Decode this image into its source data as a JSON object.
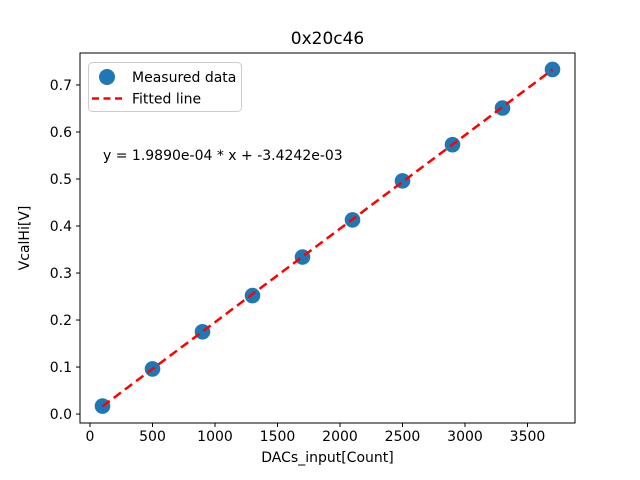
{
  "chart_data": {
    "type": "scatter",
    "title": "0x20c46",
    "xlabel": "DACs_input[Count]",
    "ylabel": "VcalHi[V]",
    "annotation": "y = 1.9890e-04 * x + -3.4242e-03",
    "grid": false,
    "legend_position": "upper left",
    "legend": [
      {
        "label": "Measured data",
        "symbol": "circle-marker",
        "color": "#1f77b4"
      },
      {
        "label": "Fitted line",
        "symbol": "dashed-line",
        "color": "#ff0000"
      }
    ],
    "x_ticks": [
      0,
      500,
      1000,
      1500,
      2000,
      2500,
      3000,
      3500
    ],
    "y_ticks": [
      0.0,
      0.1,
      0.2,
      0.3,
      0.4,
      0.5,
      0.6,
      0.7
    ],
    "xlim": [
      -80,
      3880
    ],
    "ylim": [
      -0.019,
      0.768
    ],
    "series": [
      {
        "name": "Measured data",
        "type": "scatter",
        "color": "#1f77b4",
        "x": [
          100,
          500,
          900,
          1300,
          1700,
          2100,
          2500,
          2900,
          3300,
          3700
        ],
        "y": [
          0.017,
          0.096,
          0.175,
          0.252,
          0.334,
          0.413,
          0.496,
          0.573,
          0.651,
          0.733
        ]
      },
      {
        "name": "Fitted line",
        "type": "line",
        "style": "dashed",
        "color": "#ff0000",
        "slope": 0.0001989,
        "intercept": -0.0034242,
        "x_start": 100,
        "x_end": 3700
      }
    ]
  }
}
